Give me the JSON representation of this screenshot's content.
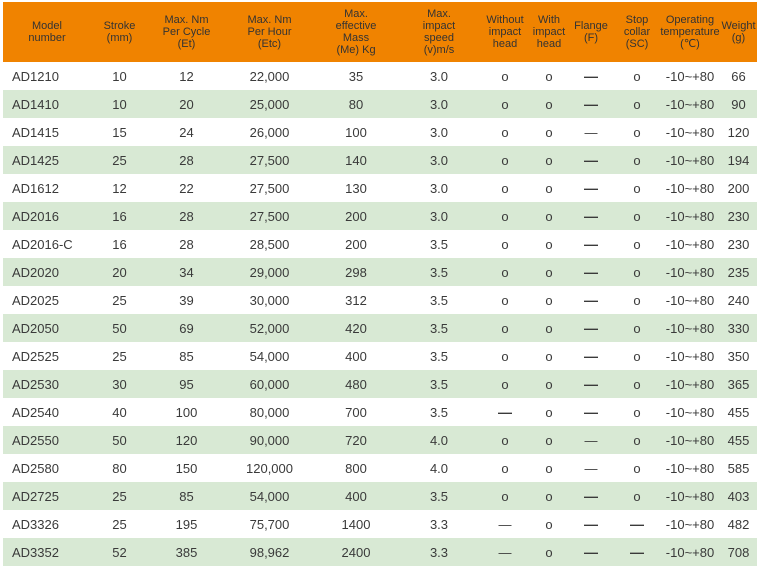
{
  "colors": {
    "header_bg": "#F08300",
    "header_text": "#333333",
    "row_bg": "#FFFFFF",
    "row_alt_bg": "#D8E9D4",
    "text": "#3A3A3A",
    "page_bg": "#FFFFFF"
  },
  "symbols": {
    "available": "o",
    "not_available": "—"
  },
  "table": {
    "columns": [
      {
        "label": "Model number",
        "lines": [
          "Model",
          "number"
        ]
      },
      {
        "label": "Stroke (mm)",
        "lines": [
          "Stroke",
          "(mm)"
        ]
      },
      {
        "label": "Max. Nm Per Cycle (Et)",
        "lines": [
          "Max. Nm",
          "Per Cycle",
          "(Et)"
        ]
      },
      {
        "label": "Max. Nm Per Hour (Etc)",
        "lines": [
          "Max. Nm",
          "Per Hour",
          "(Etc)"
        ]
      },
      {
        "label": "Max. effective Mass (Me) Kg",
        "lines": [
          "Max.",
          "effective",
          "Mass",
          "(Me) Kg"
        ]
      },
      {
        "label": "Max. impact speed (v)m/s",
        "lines": [
          "Max.",
          "impact",
          "speed",
          "(v)m/s"
        ]
      },
      {
        "label": "Without impact head",
        "lines": [
          "Without",
          "impact",
          "head"
        ]
      },
      {
        "label": "With impact head",
        "lines": [
          "With",
          "impact",
          "head"
        ]
      },
      {
        "label": "Flange (F)",
        "lines": [
          "Flange",
          "(F)"
        ]
      },
      {
        "label": "Stop collar (SC)",
        "lines": [
          "Stop",
          "collar",
          "(SC)"
        ]
      },
      {
        "label": "Operating temperature (℃)",
        "lines": [
          "Operating",
          "temperature",
          "(℃)"
        ]
      },
      {
        "label": "Weight (g)",
        "lines": [
          "Weight",
          "(g)"
        ]
      }
    ],
    "rows": [
      [
        "AD1210",
        "10",
        "12",
        "22,000",
        "35",
        "3.0",
        "o",
        "o",
        "—",
        "o",
        "-10~+80",
        "66"
      ],
      [
        "AD1410",
        "10",
        "20",
        "25,000",
        "80",
        "3.0",
        "o",
        "o",
        "—",
        "o",
        "-10~+80",
        "90"
      ],
      [
        "AD1415",
        "15",
        "24",
        "26,000",
        "100",
        "3.0",
        "o",
        "o",
        "—",
        "o",
        "-10~+80",
        "120"
      ],
      [
        "AD1425",
        "25",
        "28",
        "27,500",
        "140",
        "3.0",
        "o",
        "o",
        "—",
        "o",
        "-10~+80",
        "194"
      ],
      [
        "AD1612",
        "12",
        "22",
        "27,500",
        "130",
        "3.0",
        "o",
        "o",
        "—",
        "o",
        "-10~+80",
        "200"
      ],
      [
        "AD2016",
        "16",
        "28",
        "27,500",
        "200",
        "3.0",
        "o",
        "o",
        "—",
        "o",
        "-10~+80",
        "230"
      ],
      [
        "AD2016-C",
        "16",
        "28",
        "28,500",
        "200",
        "3.5",
        "o",
        "o",
        "—",
        "o",
        "-10~+80",
        "230"
      ],
      [
        "AD2020",
        "20",
        "34",
        "29,000",
        "298",
        "3.5",
        "o",
        "o",
        "—",
        "o",
        "-10~+80",
        "235"
      ],
      [
        "AD2025",
        "25",
        "39",
        "30,000",
        "312",
        "3.5",
        "o",
        "o",
        "—",
        "o",
        "-10~+80",
        "240"
      ],
      [
        "AD2050",
        "50",
        "69",
        "52,000",
        "420",
        "3.5",
        "o",
        "o",
        "—",
        "o",
        "-10~+80",
        "330"
      ],
      [
        "AD2525",
        "25",
        "85",
        "54,000",
        "400",
        "3.5",
        "o",
        "o",
        "—",
        "o",
        "-10~+80",
        "350"
      ],
      [
        "AD2530",
        "30",
        "95",
        "60,000",
        "480",
        "3.5",
        "o",
        "o",
        "—",
        "o",
        "-10~+80",
        "365"
      ],
      [
        "AD2540",
        "40",
        "100",
        "80,000",
        "700",
        "3.5",
        "—",
        "o",
        "—",
        "o",
        "-10~+80",
        "455"
      ],
      [
        "AD2550",
        "50",
        "120",
        "90,000",
        "720",
        "4.0",
        "o",
        "o",
        "—",
        "o",
        "-10~+80",
        "455"
      ],
      [
        "AD2580",
        "80",
        "150",
        "120,000",
        "800",
        "4.0",
        "o",
        "o",
        "—",
        "o",
        "-10~+80",
        "585"
      ],
      [
        "AD2725",
        "25",
        "85",
        "54,000",
        "400",
        "3.5",
        "o",
        "o",
        "—",
        "o",
        "-10~+80",
        "403"
      ],
      [
        "AD3326",
        "25",
        "195",
        "75,700",
        "1400",
        "3.3",
        "—",
        "o",
        "—",
        "—",
        "-10~+80",
        "482"
      ],
      [
        "AD3352",
        "52",
        "385",
        "98,962",
        "2400",
        "3.3",
        "—",
        "o",
        "—",
        "—",
        "-10~+80",
        "708"
      ]
    ],
    "thin_dashes": [
      [
        2,
        8
      ],
      [
        13,
        8
      ],
      [
        14,
        8
      ],
      [
        16,
        6
      ],
      [
        17,
        6
      ]
    ]
  }
}
